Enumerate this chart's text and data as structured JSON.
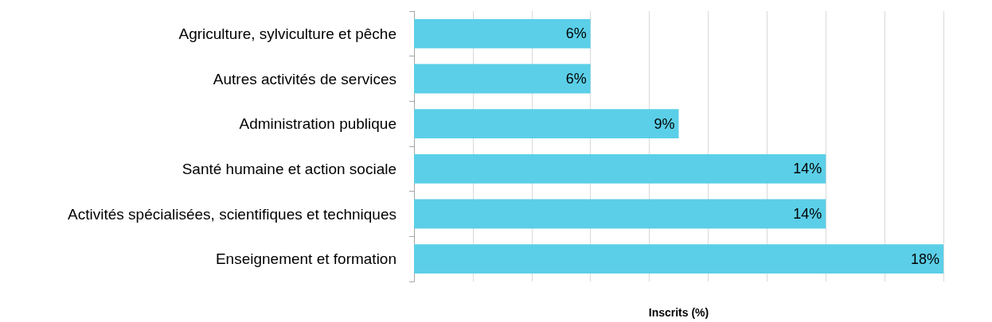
{
  "chart_data": {
    "type": "bar",
    "orientation": "horizontal",
    "xlabel": "Inscrits (%)",
    "categories": [
      "Agriculture, sylviculture et pêche",
      "Autres activités de services",
      "Administration publique",
      "Santé humaine et action sociale",
      "Activités spécialisées, scientifiques et techniques",
      "Enseignement et formation"
    ],
    "values": [
      6,
      6,
      9,
      14,
      14,
      18
    ],
    "color": "#5bcfe8",
    "value_labels": [
      "6%",
      "6%",
      "9%",
      "14%",
      "14%",
      "18%"
    ],
    "xlim": [
      0,
      18
    ],
    "xticks": [
      {
        "value": 0,
        "label": null
      },
      {
        "value": 2,
        "label": null
      },
      {
        "value": 4,
        "label": null
      },
      {
        "value": 6,
        "label": null
      },
      {
        "value": 8,
        "label": null
      },
      {
        "value": 10,
        "label": null
      },
      {
        "value": 12,
        "label": null
      },
      {
        "value": 14,
        "label": null
      },
      {
        "value": 16,
        "label": null
      },
      {
        "value": 18,
        "label": null
      }
    ],
    "grid": "x",
    "tick_labels": "y"
  }
}
